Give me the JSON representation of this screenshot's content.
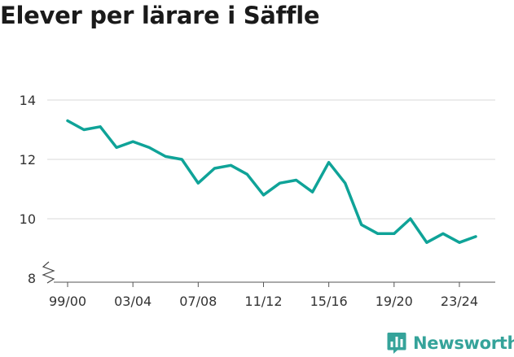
{
  "chart_data": {
    "type": "line",
    "title": "Elever per lärare i Säffle",
    "xlabel": "",
    "ylabel": "",
    "ylim": [
      8,
      14
    ],
    "y_ticks": [
      "8",
      "10",
      "12",
      "14"
    ],
    "x_tick_labels": [
      "99/00",
      "03/04",
      "07/08",
      "11/12",
      "15/16",
      "19/20",
      "23/24"
    ],
    "y_axis_broken": true,
    "grid": true,
    "series": [
      {
        "name": "Elever per lärare",
        "color": "#0fa398",
        "x": [
          "99/00",
          "00/01",
          "01/02",
          "02/03",
          "03/04",
          "04/05",
          "05/06",
          "06/07",
          "07/08",
          "08/09",
          "09/10",
          "10/11",
          "11/12",
          "12/13",
          "13/14",
          "14/15",
          "15/16",
          "16/17",
          "17/18",
          "18/19",
          "19/20",
          "20/21",
          "21/22",
          "22/23",
          "23/24",
          "24/25"
        ],
        "values": [
          13.3,
          13.0,
          13.1,
          12.4,
          12.6,
          12.4,
          12.1,
          12.0,
          11.2,
          11.7,
          11.8,
          11.5,
          10.8,
          11.2,
          11.3,
          10.9,
          11.9,
          11.2,
          9.8,
          9.5,
          9.5,
          10.0,
          9.2,
          9.5,
          9.2,
          9.4
        ]
      }
    ]
  },
  "branding": {
    "name": "Newsworthy",
    "color": "#35a39a",
    "logo_icon": "bar-chart-bubble-icon"
  }
}
